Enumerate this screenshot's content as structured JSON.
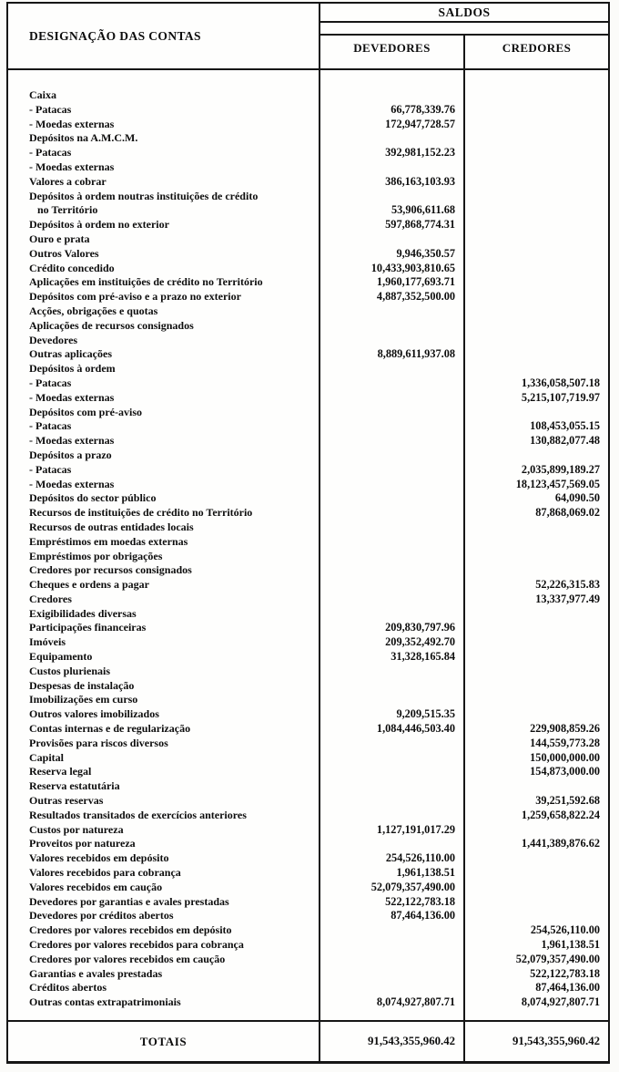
{
  "document": {
    "header": {
      "designation_label": "DESIGNAÇÃO DAS CONTAS",
      "saldos_label": "SALDOS",
      "devedores_label": "DEVEDORES",
      "credores_label": "CREDORES"
    },
    "rows": [
      {
        "label": "Caixa",
        "dev": "",
        "cred": ""
      },
      {
        "label": "- Patacas",
        "dev": "66,778,339.76",
        "cred": ""
      },
      {
        "label": "- Moedas externas",
        "dev": "172,947,728.57",
        "cred": ""
      },
      {
        "label": "Depósitos na A.M.C.M.",
        "dev": "",
        "cred": ""
      },
      {
        "label": "- Patacas",
        "dev": "392,981,152.23",
        "cred": ""
      },
      {
        "label": "- Moedas externas",
        "dev": "",
        "cred": ""
      },
      {
        "label": "Valores a cobrar",
        "dev": "386,163,103.93",
        "cred": ""
      },
      {
        "label": "Depósitos à ordem noutras instituições de crédito",
        "dev": "",
        "cred": ""
      },
      {
        "label": "no Território",
        "cont": true,
        "dev": "53,906,611.68",
        "cred": ""
      },
      {
        "label": "Depósitos à ordem no exterior",
        "dev": "597,868,774.31",
        "cred": ""
      },
      {
        "label": "Ouro e prata",
        "dev": "",
        "cred": ""
      },
      {
        "label": "Outros Valores",
        "dev": "9,946,350.57",
        "cred": ""
      },
      {
        "label": "Crédito concedido",
        "dev": "10,433,903,810.65",
        "cred": ""
      },
      {
        "label": "Aplicações em instituições de crédito no Território",
        "dev": "1,960,177,693.71",
        "cred": ""
      },
      {
        "label": "Depósitos com pré-aviso e a prazo no exterior",
        "dev": "4,887,352,500.00",
        "cred": ""
      },
      {
        "label": "Acções, obrigações e quotas",
        "dev": "",
        "cred": ""
      },
      {
        "label": "Aplicações de recursos consignados",
        "dev": "",
        "cred": ""
      },
      {
        "label": "Devedores",
        "dev": "",
        "cred": ""
      },
      {
        "label": "Outras aplicações",
        "dev": "8,889,611,937.08",
        "cred": ""
      },
      {
        "label": "Depósitos à ordem",
        "dev": "",
        "cred": ""
      },
      {
        "label": "- Patacas",
        "dev": "",
        "cred": "1,336,058,507.18"
      },
      {
        "label": "- Moedas externas",
        "dev": "",
        "cred": "5,215,107,719.97"
      },
      {
        "label": "Depósitos com pré-aviso",
        "dev": "",
        "cred": ""
      },
      {
        "label": "- Patacas",
        "dev": "",
        "cred": "108,453,055.15"
      },
      {
        "label": "- Moedas externas",
        "dev": "",
        "cred": "130,882,077.48"
      },
      {
        "label": "Depósitos a prazo",
        "dev": "",
        "cred": ""
      },
      {
        "label": "- Patacas",
        "dev": "",
        "cred": "2,035,899,189.27"
      },
      {
        "label": "- Moedas externas",
        "dev": "",
        "cred": "18,123,457,569.05"
      },
      {
        "label": "Depósitos do sector público",
        "dev": "",
        "cred": "64,090.50"
      },
      {
        "label": "Recursos de instituições de crédito no Território",
        "dev": "",
        "cred": "87,868,069.02"
      },
      {
        "label": "Recursos de outras entidades locais",
        "dev": "",
        "cred": ""
      },
      {
        "label": "Empréstimos em moedas externas",
        "dev": "",
        "cred": ""
      },
      {
        "label": "Empréstimos por obrigações",
        "dev": "",
        "cred": ""
      },
      {
        "label": "Credores por recursos consignados",
        "dev": "",
        "cred": ""
      },
      {
        "label": "Cheques e ordens a pagar",
        "dev": "",
        "cred": "52,226,315.83"
      },
      {
        "label": "Credores",
        "dev": "",
        "cred": "13,337,977.49"
      },
      {
        "label": "Exigibilidades diversas",
        "dev": "",
        "cred": ""
      },
      {
        "label": "Participações financeiras",
        "dev": "209,830,797.96",
        "cred": ""
      },
      {
        "label": "Imóveis",
        "dev": "209,352,492.70",
        "cred": ""
      },
      {
        "label": "Equipamento",
        "dev": "31,328,165.84",
        "cred": ""
      },
      {
        "label": "Custos plurienais",
        "dev": "",
        "cred": ""
      },
      {
        "label": "Despesas de instalação",
        "dev": "",
        "cred": ""
      },
      {
        "label": "Imobilizações em  curso",
        "dev": "",
        "cred": ""
      },
      {
        "label": "Outros valores imobilizados",
        "dev": "9,209,515.35",
        "cred": ""
      },
      {
        "label": "Contas internas e de regularização",
        "dev": "1,084,446,503.40",
        "cred": "229,908,859.26"
      },
      {
        "label": "Provisões para riscos diversos",
        "dev": "",
        "cred": "144,559,773.28"
      },
      {
        "label": "Capital",
        "dev": "",
        "cred": "150,000,000.00"
      },
      {
        "label": "Reserva legal",
        "dev": "",
        "cred": "154,873,000.00"
      },
      {
        "label": "Reserva estatutária",
        "dev": "",
        "cred": ""
      },
      {
        "label": "Outras reservas",
        "dev": "",
        "cred": "39,251,592.68"
      },
      {
        "label": "Resultados transitados de exercícios anteriores",
        "dev": "",
        "cred": "1,259,658,822.24"
      },
      {
        "label": "Custos por natureza",
        "dev": "1,127,191,017.29",
        "cred": ""
      },
      {
        "label": "Proveitos por natureza",
        "dev": "",
        "cred": "1,441,389,876.62"
      },
      {
        "label": "Valores recebidos em depósito",
        "dev": "254,526,110.00",
        "cred": ""
      },
      {
        "label": "Valores recebidos para cobrança",
        "dev": "1,961,138.51",
        "cred": ""
      },
      {
        "label": "Valores recebidos em caução",
        "dev": "52,079,357,490.00",
        "cred": ""
      },
      {
        "label": "Devedores por garantias e avales prestadas",
        "dev": "522,122,783.18",
        "cred": ""
      },
      {
        "label": "Devedores por créditos abertos",
        "dev": "87,464,136.00",
        "cred": ""
      },
      {
        "label": "Credores por valores recebidos em depósito",
        "dev": "",
        "cred": "254,526,110.00"
      },
      {
        "label": "Credores por valores recebidos para cobrança",
        "dev": "",
        "cred": "1,961,138.51"
      },
      {
        "label": "Credores por valores recebidos em caução",
        "dev": "",
        "cred": "52,079,357,490.00"
      },
      {
        "label": "Garantias e avales prestadas",
        "dev": "",
        "cred": "522,122,783.18"
      },
      {
        "label": "Créditos abertos",
        "dev": "",
        "cred": "87,464,136.00"
      },
      {
        "label": "Outras contas extrapatrimoniais",
        "dev": "8,074,927,807.71",
        "cred": "8,074,927,807.71"
      }
    ],
    "totals": {
      "label": "TOTAIS",
      "dev": "91,543,355,960.42",
      "cred": "91,543,355,960.42"
    }
  }
}
